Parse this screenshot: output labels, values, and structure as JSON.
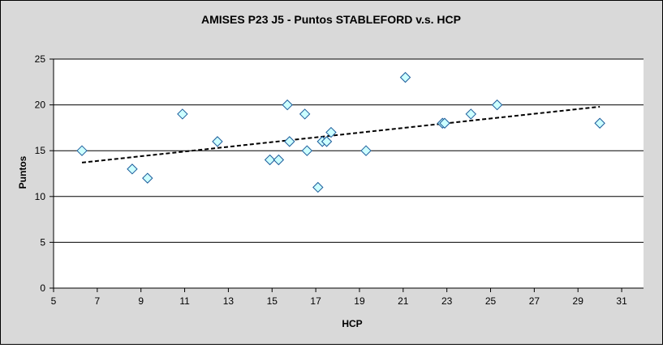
{
  "chart_data": {
    "type": "scatter",
    "title": "AMISES P23 J5 - Puntos STABLEFORD v.s. HCP",
    "xlabel": "HCP",
    "ylabel": "Puntos",
    "xlim": [
      5,
      32
    ],
    "ylim": [
      0,
      25
    ],
    "x_ticks": [
      5,
      7,
      9,
      11,
      13,
      15,
      17,
      19,
      21,
      23,
      25,
      27,
      29,
      31
    ],
    "y_ticks": [
      0,
      5,
      10,
      15,
      20,
      25
    ],
    "grid": "horizontal",
    "legend": "none",
    "colors": {
      "plot_background": "#ffffff",
      "chart_background": "#d9d9d9",
      "marker_fill": "#ccffff",
      "marker_stroke": "#1a5b9a",
      "trendline": "#000000",
      "gridline": "#000000"
    },
    "series": [
      {
        "marker": "diamond",
        "points": [
          {
            "x": 6.3,
            "y": 15
          },
          {
            "x": 8.6,
            "y": 13
          },
          {
            "x": 9.3,
            "y": 12
          },
          {
            "x": 10.9,
            "y": 19
          },
          {
            "x": 12.5,
            "y": 16
          },
          {
            "x": 14.9,
            "y": 14
          },
          {
            "x": 15.3,
            "y": 14
          },
          {
            "x": 15.7,
            "y": 20
          },
          {
            "x": 15.8,
            "y": 16
          },
          {
            "x": 16.5,
            "y": 19
          },
          {
            "x": 16.6,
            "y": 15
          },
          {
            "x": 17.1,
            "y": 11
          },
          {
            "x": 17.3,
            "y": 16
          },
          {
            "x": 17.5,
            "y": 16
          },
          {
            "x": 17.7,
            "y": 17
          },
          {
            "x": 19.3,
            "y": 15
          },
          {
            "x": 21.1,
            "y": 23
          },
          {
            "x": 22.8,
            "y": 18
          },
          {
            "x": 22.9,
            "y": 18
          },
          {
            "x": 24.1,
            "y": 19
          },
          {
            "x": 25.3,
            "y": 20
          },
          {
            "x": 30.0,
            "y": 18
          }
        ]
      }
    ],
    "trendline": {
      "style": "dashed",
      "x": [
        6.3,
        30.0
      ],
      "y": [
        13.7,
        19.8
      ]
    }
  }
}
